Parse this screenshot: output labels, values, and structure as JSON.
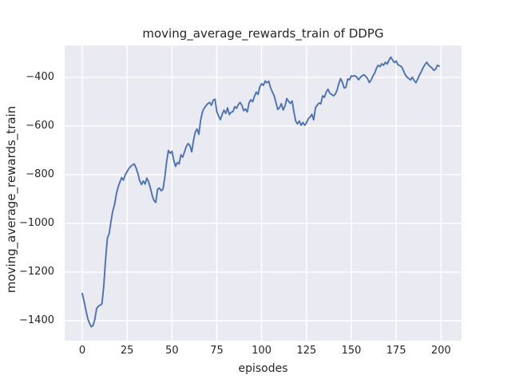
{
  "figure": {
    "background": "#ffffff",
    "axes_background": "#eaeaf2",
    "grid_color": "#ffffff",
    "text_color": "#262626"
  },
  "chart_data": {
    "type": "line",
    "title": "moving_average_rewards_train of DDPG",
    "xlabel": "episodes",
    "ylabel": "moving_average_rewards_train",
    "legend": null,
    "grid": true,
    "x_ticks": [
      0,
      25,
      50,
      75,
      100,
      125,
      150,
      175,
      200
    ],
    "x_tick_labels": [
      "0",
      "25",
      "50",
      "75",
      "100",
      "125",
      "150",
      "175",
      "200"
    ],
    "y_ticks": [
      -400,
      -600,
      -800,
      -1000,
      -1200,
      -1400
    ],
    "y_tick_labels": [
      "−400",
      "−600",
      "−800",
      "−1000",
      "−1200",
      "−1400"
    ],
    "xlim": [
      -9.8,
      211.4
    ],
    "ylim": [
      -1482,
      -269
    ],
    "line_color": "#4c72b0",
    "series": [
      {
        "name": "moving_average_rewards_train",
        "x": [
          0,
          1,
          2,
          3,
          4,
          5,
          6,
          7,
          8,
          9,
          10,
          11,
          12,
          13,
          14,
          15,
          16,
          17,
          18,
          19,
          20,
          21,
          22,
          23,
          24,
          25,
          26,
          27,
          28,
          29,
          30,
          31,
          32,
          33,
          34,
          35,
          36,
          37,
          38,
          39,
          40,
          41,
          42,
          43,
          44,
          45,
          46,
          47,
          48,
          49,
          50,
          51,
          52,
          53,
          54,
          55,
          56,
          57,
          58,
          59,
          60,
          61,
          62,
          63,
          64,
          65,
          66,
          67,
          68,
          69,
          70,
          71,
          72,
          73,
          74,
          75,
          76,
          77,
          78,
          79,
          80,
          81,
          82,
          83,
          84,
          85,
          86,
          87,
          88,
          89,
          90,
          91,
          92,
          93,
          94,
          95,
          96,
          97,
          98,
          99,
          100,
          101,
          102,
          103,
          104,
          105,
          106,
          107,
          108,
          109,
          110,
          111,
          112,
          113,
          114,
          115,
          116,
          117,
          118,
          119,
          120,
          121,
          122,
          123,
          124,
          125,
          126,
          127,
          128,
          129,
          130,
          131,
          132,
          133,
          134,
          135,
          136,
          137,
          138,
          139,
          140,
          141,
          142,
          143,
          144,
          145,
          146,
          147,
          148,
          149,
          150,
          151,
          152,
          153,
          154,
          155,
          156,
          157,
          158,
          159,
          160,
          161,
          162,
          163,
          164,
          165,
          166,
          167,
          168,
          169,
          170,
          171,
          172,
          173,
          174,
          175,
          176,
          177,
          178,
          179,
          180,
          181,
          182,
          183,
          184,
          185,
          186,
          187,
          188,
          189,
          190,
          191,
          192,
          193,
          194,
          195,
          196,
          197,
          198,
          199
        ],
        "y": [
          -1288,
          -1320,
          -1355,
          -1390,
          -1410,
          -1425,
          -1419,
          -1395,
          -1350,
          -1340,
          -1336,
          -1330,
          -1255,
          -1150,
          -1060,
          -1042,
          -992,
          -950,
          -922,
          -880,
          -850,
          -830,
          -812,
          -822,
          -800,
          -787,
          -775,
          -766,
          -760,
          -756,
          -772,
          -795,
          -824,
          -840,
          -826,
          -838,
          -814,
          -830,
          -855,
          -885,
          -906,
          -914,
          -860,
          -855,
          -866,
          -860,
          -812,
          -748,
          -700,
          -712,
          -704,
          -740,
          -766,
          -750,
          -756,
          -718,
          -728,
          -706,
          -684,
          -672,
          -680,
          -706,
          -660,
          -625,
          -612,
          -634,
          -575,
          -541,
          -526,
          -516,
          -508,
          -503,
          -515,
          -494,
          -490,
          -540,
          -558,
          -574,
          -552,
          -535,
          -548,
          -525,
          -553,
          -543,
          -541,
          -520,
          -527,
          -512,
          -503,
          -515,
          -537,
          -530,
          -542,
          -504,
          -492,
          -500,
          -478,
          -460,
          -470,
          -438,
          -426,
          -433,
          -415,
          -422,
          -416,
          -444,
          -460,
          -476,
          -504,
          -532,
          -524,
          -508,
          -534,
          -518,
          -487,
          -498,
          -507,
          -497,
          -542,
          -580,
          -591,
          -579,
          -597,
          -585,
          -597,
          -586,
          -570,
          -563,
          -552,
          -575,
          -525,
          -514,
          -505,
          -509,
          -476,
          -482,
          -460,
          -449,
          -465,
          -470,
          -476,
          -470,
          -453,
          -426,
          -405,
          -420,
          -444,
          -440,
          -406,
          -410,
          -394,
          -396,
          -393,
          -399,
          -410,
          -400,
          -394,
          -389,
          -396,
          -405,
          -421,
          -411,
          -395,
          -382,
          -362,
          -350,
          -356,
          -344,
          -350,
          -338,
          -345,
          -329,
          -317,
          -329,
          -339,
          -333,
          -349,
          -352,
          -356,
          -372,
          -388,
          -399,
          -404,
          -411,
          -399,
          -413,
          -422,
          -407,
          -390,
          -377,
          -360,
          -348,
          -338,
          -349,
          -356,
          -362,
          -371,
          -366,
          -350,
          -354
        ]
      }
    ]
  }
}
